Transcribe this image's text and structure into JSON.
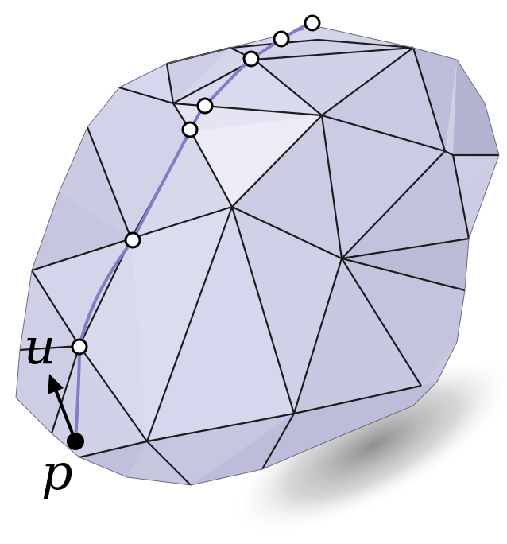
{
  "figure": {
    "description_labels": {
      "start_point": "p",
      "direction": "u"
    },
    "colors": {
      "face_light": "#e2e2f2",
      "face_mid": "#cfcfe6",
      "face_dark": "#b8b8d6",
      "edge": "#1c1c1c",
      "path": "#7f7fc4",
      "marker_fill": "#ffffff",
      "marker_stroke": "#000000",
      "shadow": "#9a9a9a"
    },
    "path_markers": 7
  }
}
